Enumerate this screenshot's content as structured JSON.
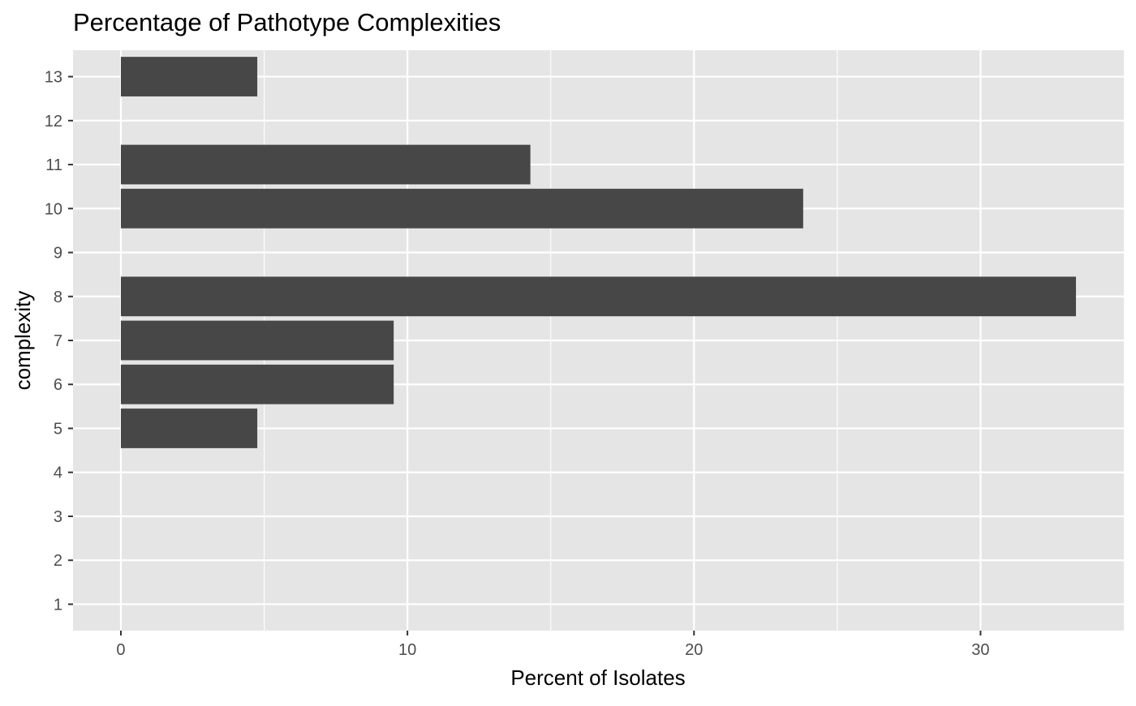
{
  "chart_data": {
    "type": "bar",
    "orientation": "horizontal",
    "title": "Percentage of Pathotype Complexities",
    "xlabel": "Percent of Isolates",
    "ylabel": "complexity",
    "categories": [
      "1",
      "2",
      "3",
      "4",
      "5",
      "6",
      "7",
      "8",
      "9",
      "10",
      "11",
      "12",
      "13"
    ],
    "values": [
      0,
      0,
      0,
      0,
      4.76,
      9.52,
      9.52,
      33.33,
      0,
      23.81,
      14.29,
      0,
      4.76
    ],
    "xlim": [
      -1.67,
      35.0
    ],
    "ylim": [
      0.4,
      13.6
    ],
    "xticks": [
      "0",
      "10",
      "20",
      "30"
    ],
    "xtick_values": [
      0,
      10,
      20,
      30
    ],
    "xminor_values": [
      5,
      15,
      25
    ],
    "grid": true,
    "legend": "none",
    "colors": {
      "bar": "#474747",
      "panel": "#e5e5e5",
      "grid": "#ffffff",
      "tick_text": "#4d4d4d",
      "title_text": "#000000"
    }
  }
}
